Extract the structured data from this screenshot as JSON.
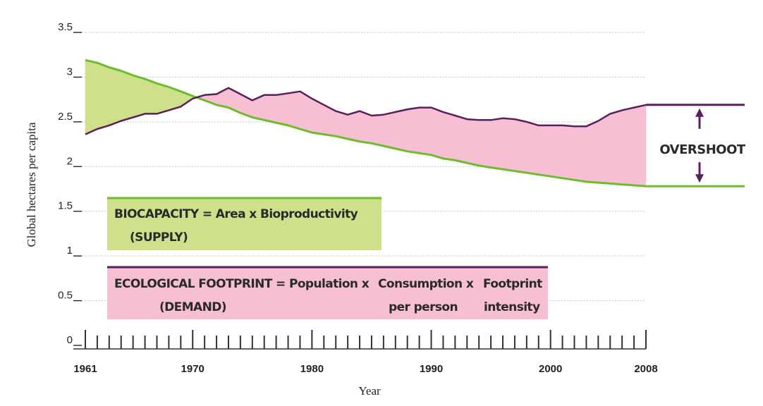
{
  "chart_data": {
    "type": "area",
    "xlabel": "Year",
    "ylabel": "Global hectares per capita",
    "xlim": [
      1961,
      2008
    ],
    "ylim": [
      0,
      3.5
    ],
    "y_ticks": [
      "0",
      "0.5",
      "1",
      "1.5",
      "2",
      "2.5",
      "3",
      "3.5"
    ],
    "x_ticks": [
      "1961",
      "1970",
      "1980",
      "1990",
      "2000",
      "2008"
    ],
    "grid": "horizontal dotted",
    "series": [
      {
        "key": "footprint",
        "color": "#5a1f5c",
        "x": [
          1961,
          1962,
          1963,
          1964,
          1965,
          1966,
          1967,
          1968,
          1969,
          1970,
          1971,
          1972,
          1973,
          1974,
          1975,
          1976,
          1977,
          1978,
          1979,
          1980,
          1981,
          1982,
          1983,
          1984,
          1985,
          1986,
          1987,
          1988,
          1989,
          1990,
          1991,
          1992,
          1993,
          1994,
          1995,
          1996,
          1997,
          1998,
          1999,
          2000,
          2001,
          2002,
          2003,
          2004,
          2005,
          2006,
          2007,
          2008
        ],
        "values": [
          2.36,
          2.42,
          2.46,
          2.51,
          2.55,
          2.59,
          2.59,
          2.63,
          2.67,
          2.76,
          2.8,
          2.81,
          2.88,
          2.81,
          2.74,
          2.8,
          2.8,
          2.82,
          2.84,
          2.76,
          2.69,
          2.62,
          2.58,
          2.62,
          2.57,
          2.58,
          2.61,
          2.64,
          2.66,
          2.66,
          2.61,
          2.57,
          2.53,
          2.52,
          2.52,
          2.54,
          2.53,
          2.5,
          2.46,
          2.46,
          2.46,
          2.45,
          2.45,
          2.51,
          2.59,
          2.63,
          2.66,
          2.69
        ]
      },
      {
        "key": "biocapacity",
        "color": "#6cbd2b",
        "x": [
          1961,
          1962,
          1963,
          1964,
          1965,
          1966,
          1967,
          1968,
          1969,
          1970,
          1971,
          1972,
          1973,
          1974,
          1975,
          1976,
          1977,
          1978,
          1979,
          1980,
          1981,
          1982,
          1983,
          1984,
          1985,
          1986,
          1987,
          1988,
          1989,
          1990,
          1991,
          1992,
          1993,
          1994,
          1995,
          1996,
          1997,
          1998,
          1999,
          2000,
          2001,
          2002,
          2003,
          2004,
          2005,
          2006,
          2007,
          2008
        ],
        "values": [
          3.19,
          3.16,
          3.11,
          3.07,
          3.02,
          2.98,
          2.93,
          2.89,
          2.84,
          2.79,
          2.74,
          2.69,
          2.66,
          2.6,
          2.55,
          2.52,
          2.49,
          2.46,
          2.42,
          2.38,
          2.36,
          2.34,
          2.31,
          2.28,
          2.26,
          2.23,
          2.2,
          2.17,
          2.15,
          2.13,
          2.09,
          2.07,
          2.04,
          2.01,
          1.99,
          1.97,
          1.95,
          1.93,
          1.91,
          1.89,
          1.87,
          1.85,
          1.83,
          1.82,
          1.81,
          1.8,
          1.79,
          1.78
        ]
      }
    ],
    "overshoot_label": "OVERSHOOT",
    "colors": {
      "biocapacity_fill": "#cfe08a",
      "footprint_fill": "#f6bfd2",
      "footprint_line": "#5a1f5c",
      "biocapacity_line": "#6cbd2b",
      "grid": "#b5b5b5"
    },
    "biocapacity_box": {
      "line1": "BIOCAPACITY = Area x Bioproductivity",
      "line2": "(SUPPLY)"
    },
    "footprint_box": {
      "left1": "ECOLOGICAL FOOTPRINT = Population x",
      "left2": "(DEMAND)",
      "mid1": "Consumption x",
      "mid2": "per person",
      "right1": "Footprint",
      "right2": "intensity"
    }
  }
}
